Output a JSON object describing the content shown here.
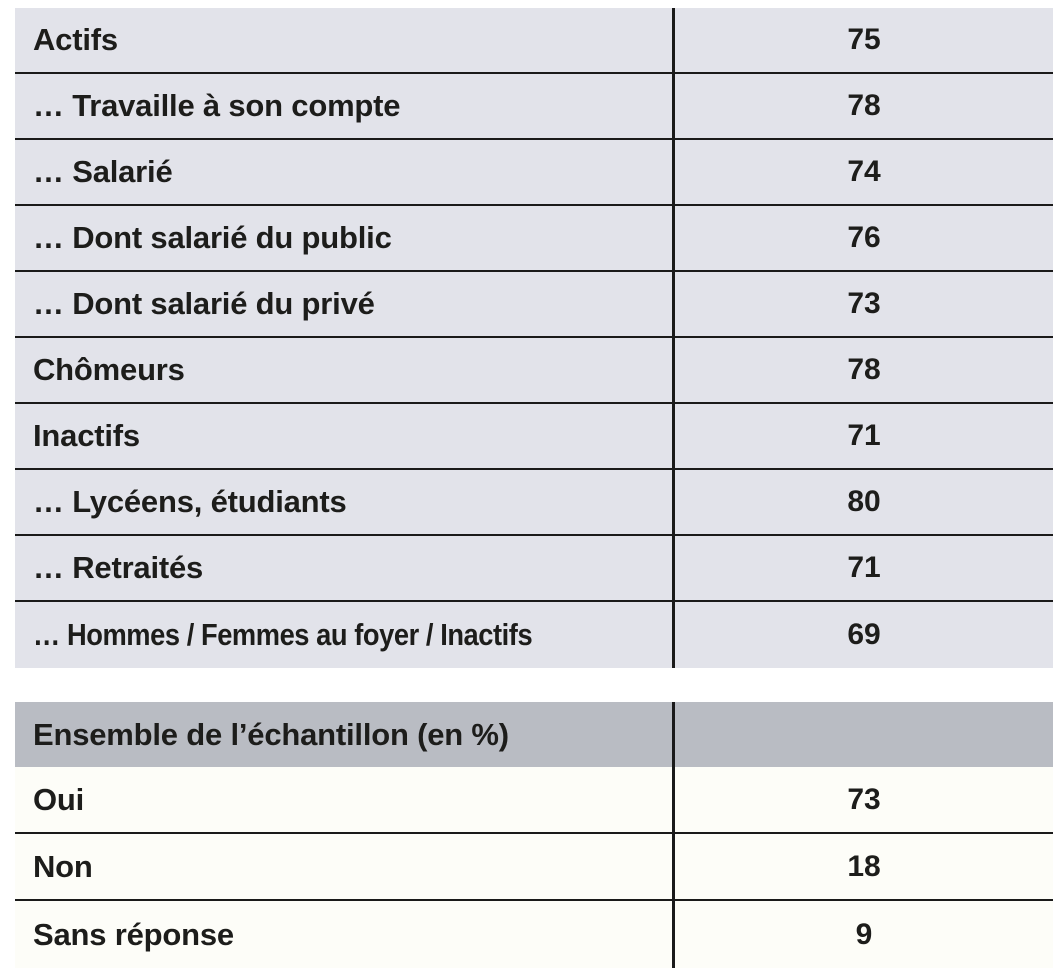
{
  "colors": {
    "table1_row_bg": "#e2e3ea",
    "table2_header_bg": "#b9bcc3",
    "table2_body_bg": "#fdfdf8",
    "grid_line": "#1a1a1a",
    "text": "#1d1d1b"
  },
  "table1": {
    "rows": [
      {
        "label": "Actifs",
        "value": "75"
      },
      {
        "label": "… Travaille à son compte",
        "value": "78"
      },
      {
        "label": "… Salarié",
        "value": "74"
      },
      {
        "label": "… Dont salarié du public",
        "value": "76"
      },
      {
        "label": "… Dont salarié du privé",
        "value": "73"
      },
      {
        "label": "Chômeurs",
        "value": "78"
      },
      {
        "label": "Inactifs",
        "value": "71"
      },
      {
        "label": "… Lycéens, étudiants",
        "value": "80"
      },
      {
        "label": "… Retraités",
        "value": "71"
      },
      {
        "label": "… Hommes / Femmes au foyer / Inactifs",
        "value": "69"
      }
    ]
  },
  "table2": {
    "header_label": "Ensemble de l’échantillon (en %)",
    "rows": [
      {
        "label": "Oui",
        "value": "73"
      },
      {
        "label": "Non",
        "value": "18"
      },
      {
        "label": "Sans réponse",
        "value": "9"
      }
    ]
  }
}
